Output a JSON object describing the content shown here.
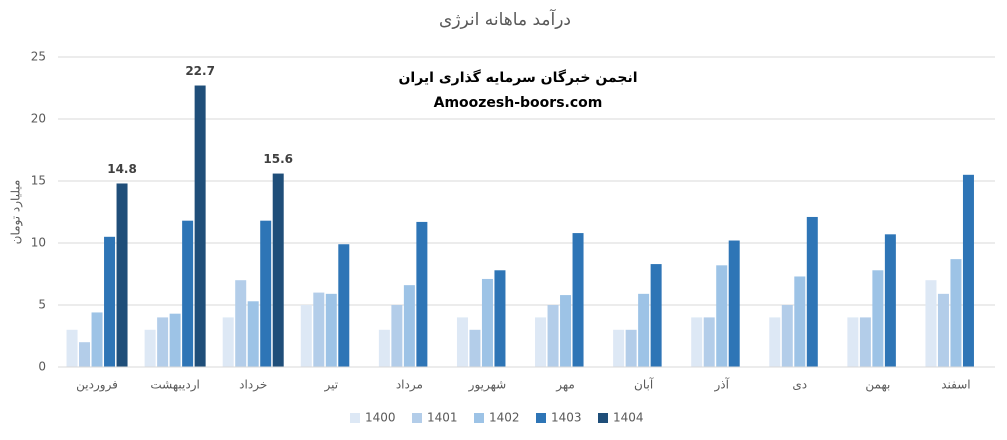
{
  "chart_data": {
    "type": "bar",
    "title": "درآمد ماهانه انرژی",
    "y_label": "میلیارد تومان",
    "annotations": [
      "انجمن خبرگان سرمایه گذاری ایران",
      "Amoozesh-boors.com"
    ],
    "categories": [
      "فروردین",
      "اردیبهشت",
      "خرداد",
      "تیر",
      "مرداد",
      "شهریور",
      "مهر",
      "آبان",
      "آذر",
      "دی",
      "بهمن",
      "اسفند"
    ],
    "series": [
      {
        "name": "1400",
        "color": "#dde8f5",
        "values": [
          3,
          3,
          4,
          5,
          3,
          4,
          4,
          3,
          4,
          4,
          4,
          7
        ]
      },
      {
        "name": "1401",
        "color": "#b3cde9",
        "values": [
          2,
          4,
          7,
          6,
          5,
          3,
          5,
          3,
          4,
          5,
          4,
          5.9
        ]
      },
      {
        "name": "1402",
        "color": "#9dc3e6",
        "values": [
          4.4,
          4.3,
          5.3,
          5.9,
          6.6,
          7.1,
          5.8,
          5.9,
          8.2,
          7.3,
          7.8,
          8.7
        ]
      },
      {
        "name": "1403",
        "color": "#2e75b6",
        "values": [
          10.5,
          11.8,
          11.8,
          9.9,
          11.7,
          7.8,
          10.8,
          8.3,
          10.2,
          12.1,
          10.7,
          15.5
        ]
      },
      {
        "name": "1404",
        "color": "#1f4e79",
        "show_values": true,
        "values": [
          14.8,
          22.7,
          15.6,
          null,
          null,
          null,
          null,
          null,
          null,
          null,
          null,
          null
        ]
      }
    ],
    "ylim": [
      0,
      25
    ],
    "yticks": [
      0,
      5,
      10,
      15,
      20,
      25
    ],
    "grid": true,
    "legend": "bottom"
  }
}
